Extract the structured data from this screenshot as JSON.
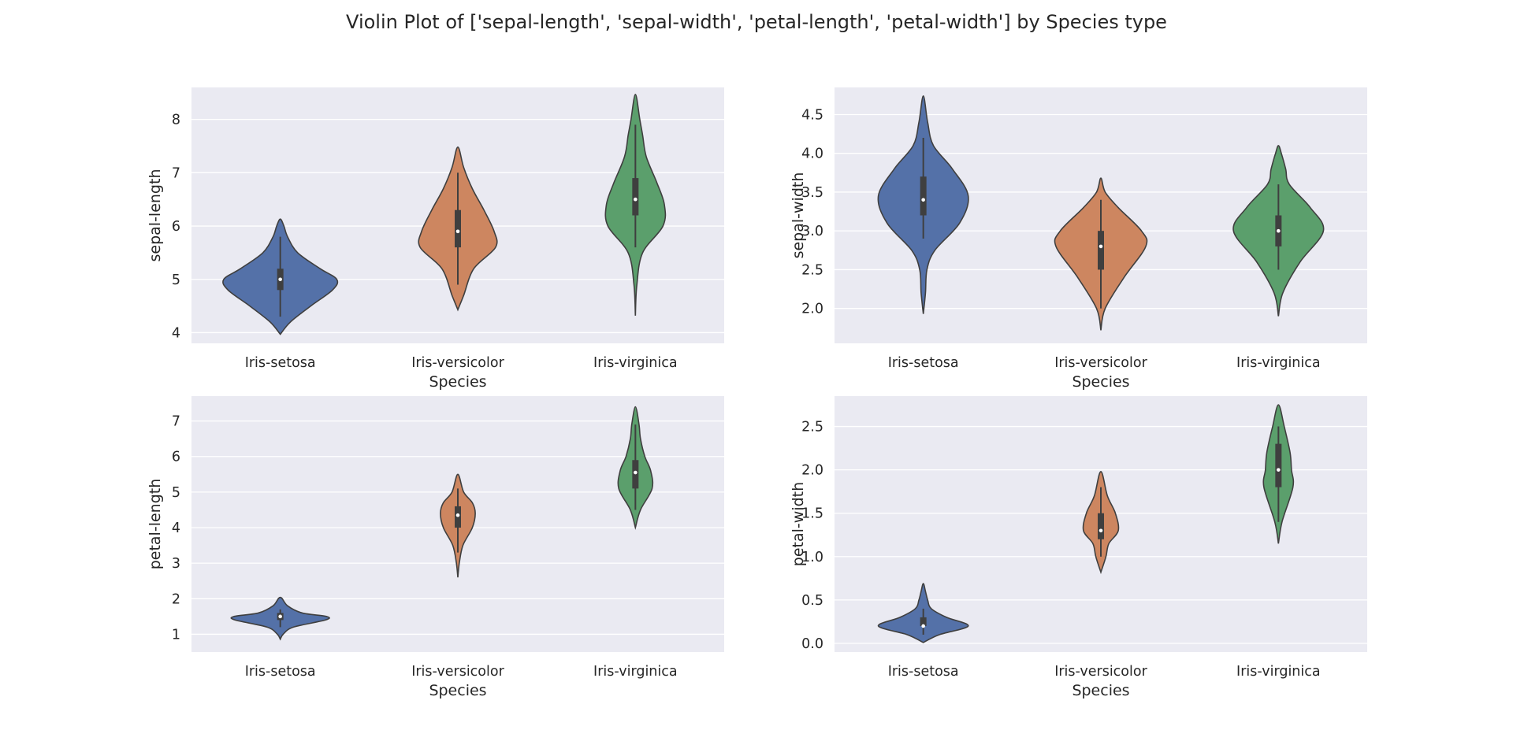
{
  "figure": {
    "title": "Violin Plot of ['sepal-length', 'sepal-width', 'petal-length', 'petal-width'] by Species type",
    "background": "#ffffff"
  },
  "style": {
    "panel_bg": "#eaeaf2",
    "grid_color": "#ffffff",
    "outline_color": "#3f3f3f",
    "box_color": "#3f3f3f",
    "median_color": "#ffffff"
  },
  "chart_data": [
    {
      "type": "violin",
      "xlabel": "Species",
      "ylabel": "sepal-length",
      "categories": [
        "Iris-setosa",
        "Iris-versicolor",
        "Iris-virginica"
      ],
      "colors": [
        "#5471a8",
        "#cd8660",
        "#5b9f6c"
      ],
      "ylim": [
        3.8,
        8.6
      ],
      "yticks": [
        4,
        5,
        6,
        7,
        8
      ],
      "grid": true,
      "violins": [
        {
          "range": [
            3.97,
            6.13
          ],
          "whisker": [
            4.3,
            5.8
          ],
          "q1": 4.8,
          "median": 5.0,
          "q3": 5.2,
          "profile": [
            [
              3.97,
              0
            ],
            [
              4.2,
              0.14
            ],
            [
              4.5,
              0.42
            ],
            [
              4.8,
              0.72
            ],
            [
              5.0,
              0.78
            ],
            [
              5.2,
              0.55
            ],
            [
              5.5,
              0.24
            ],
            [
              5.8,
              0.1
            ],
            [
              6.0,
              0.05
            ],
            [
              6.13,
              0
            ]
          ]
        },
        {
          "range": [
            4.43,
            7.48
          ],
          "whisker": [
            4.9,
            7.0
          ],
          "q1": 5.6,
          "median": 5.9,
          "q3": 6.3,
          "profile": [
            [
              4.43,
              0
            ],
            [
              4.7,
              0.08
            ],
            [
              5.2,
              0.22
            ],
            [
              5.6,
              0.52
            ],
            [
              5.9,
              0.5
            ],
            [
              6.3,
              0.36
            ],
            [
              6.7,
              0.2
            ],
            [
              7.1,
              0.08
            ],
            [
              7.48,
              0
            ]
          ]
        },
        {
          "range": [
            4.32,
            8.47
          ],
          "whisker": [
            5.6,
            7.9
          ],
          "q1": 6.2,
          "median": 6.5,
          "q3": 6.9,
          "profile": [
            [
              4.32,
              0
            ],
            [
              4.9,
              0.02
            ],
            [
              5.5,
              0.1
            ],
            [
              6.0,
              0.38
            ],
            [
              6.4,
              0.4
            ],
            [
              6.8,
              0.3
            ],
            [
              7.3,
              0.15
            ],
            [
              7.7,
              0.1
            ],
            [
              8.0,
              0.06
            ],
            [
              8.47,
              0
            ]
          ]
        }
      ]
    },
    {
      "type": "violin",
      "xlabel": "Species",
      "ylabel": "sepal-width",
      "categories": [
        "Iris-setosa",
        "Iris-versicolor",
        "Iris-virginica"
      ],
      "colors": [
        "#5471a8",
        "#cd8660",
        "#5b9f6c"
      ],
      "ylim": [
        1.55,
        4.85
      ],
      "yticks": [
        2.0,
        2.5,
        3.0,
        3.5,
        4.0,
        4.5
      ],
      "grid": true,
      "violins": [
        {
          "range": [
            1.93,
            4.74
          ],
          "whisker": [
            2.9,
            4.2
          ],
          "q1": 3.2,
          "median": 3.4,
          "q3": 3.7,
          "profile": [
            [
              1.93,
              0
            ],
            [
              2.2,
              0.03
            ],
            [
              2.5,
              0.05
            ],
            [
              2.75,
              0.16
            ],
            [
              3.1,
              0.5
            ],
            [
              3.45,
              0.62
            ],
            [
              3.8,
              0.4
            ],
            [
              4.1,
              0.14
            ],
            [
              4.4,
              0.06
            ],
            [
              4.74,
              0
            ]
          ]
        },
        {
          "range": [
            1.72,
            3.68
          ],
          "whisker": [
            2.0,
            3.4
          ],
          "q1": 2.5,
          "median": 2.8,
          "q3": 3.0,
          "profile": [
            [
              1.72,
              0
            ],
            [
              2.0,
              0.06
            ],
            [
              2.4,
              0.32
            ],
            [
              2.8,
              0.62
            ],
            [
              3.0,
              0.56
            ],
            [
              3.3,
              0.24
            ],
            [
              3.5,
              0.06
            ],
            [
              3.68,
              0
            ]
          ]
        },
        {
          "range": [
            1.9,
            4.1
          ],
          "whisker": [
            2.5,
            3.6
          ],
          "q1": 2.8,
          "median": 3.0,
          "q3": 3.2,
          "profile": [
            [
              1.9,
              0
            ],
            [
              2.2,
              0.06
            ],
            [
              2.6,
              0.3
            ],
            [
              3.0,
              0.62
            ],
            [
              3.3,
              0.44
            ],
            [
              3.6,
              0.15
            ],
            [
              3.8,
              0.1
            ],
            [
              4.0,
              0.04
            ],
            [
              4.1,
              0
            ]
          ]
        }
      ]
    },
    {
      "type": "violin",
      "xlabel": "Species",
      "ylabel": "petal-length",
      "categories": [
        "Iris-setosa",
        "Iris-versicolor",
        "Iris-virginica"
      ],
      "colors": [
        "#5471a8",
        "#cd8660",
        "#5b9f6c"
      ],
      "ylim": [
        0.5,
        7.7
      ],
      "yticks": [
        1,
        2,
        3,
        4,
        5,
        6,
        7
      ],
      "grid": true,
      "violins": [
        {
          "range": [
            0.86,
            2.04
          ],
          "whisker": [
            1.2,
            1.7
          ],
          "q1": 1.4,
          "median": 1.5,
          "q3": 1.6,
          "profile": [
            [
              0.86,
              0
            ],
            [
              1.0,
              0.04
            ],
            [
              1.2,
              0.18
            ],
            [
              1.4,
              0.62
            ],
            [
              1.5,
              0.64
            ],
            [
              1.6,
              0.3
            ],
            [
              1.8,
              0.1
            ],
            [
              2.04,
              0
            ]
          ]
        },
        {
          "range": [
            2.6,
            5.5
          ],
          "whisker": [
            3.3,
            5.1
          ],
          "q1": 4.0,
          "median": 4.35,
          "q3": 4.6,
          "profile": [
            [
              2.6,
              0
            ],
            [
              3.0,
              0.02
            ],
            [
              3.5,
              0.07
            ],
            [
              4.0,
              0.2
            ],
            [
              4.4,
              0.24
            ],
            [
              4.7,
              0.2
            ],
            [
              5.0,
              0.08
            ],
            [
              5.5,
              0
            ]
          ]
        },
        {
          "range": [
            4.0,
            7.4
          ],
          "whisker": [
            4.5,
            6.9
          ],
          "q1": 5.1,
          "median": 5.55,
          "q3": 5.9,
          "profile": [
            [
              4.0,
              0
            ],
            [
              4.5,
              0.07
            ],
            [
              5.1,
              0.23
            ],
            [
              5.6,
              0.21
            ],
            [
              6.0,
              0.13
            ],
            [
              6.5,
              0.07
            ],
            [
              6.9,
              0.05
            ],
            [
              7.4,
              0
            ]
          ]
        }
      ]
    },
    {
      "type": "violin",
      "xlabel": "Species",
      "ylabel": "petal-width",
      "categories": [
        "Iris-setosa",
        "Iris-versicolor",
        "Iris-virginica"
      ],
      "colors": [
        "#5471a8",
        "#cd8660",
        "#5b9f6c"
      ],
      "ylim": [
        -0.1,
        2.85
      ],
      "yticks": [
        0.0,
        0.5,
        1.0,
        1.5,
        2.0,
        2.5
      ],
      "grid": true,
      "violins": [
        {
          "range": [
            0.01,
            0.69
          ],
          "whisker": [
            0.1,
            0.4
          ],
          "q1": 0.2,
          "median": 0.2,
          "q3": 0.3,
          "profile": [
            [
              0.01,
              0
            ],
            [
              0.1,
              0.22
            ],
            [
              0.2,
              0.62
            ],
            [
              0.3,
              0.32
            ],
            [
              0.4,
              0.11
            ],
            [
              0.5,
              0.06
            ],
            [
              0.6,
              0.03
            ],
            [
              0.69,
              0
            ]
          ]
        },
        {
          "range": [
            0.82,
            1.98
          ],
          "whisker": [
            1.0,
            1.8
          ],
          "q1": 1.2,
          "median": 1.3,
          "q3": 1.5,
          "profile": [
            [
              0.82,
              0
            ],
            [
              1.0,
              0.07
            ],
            [
              1.15,
              0.11
            ],
            [
              1.3,
              0.24
            ],
            [
              1.5,
              0.2
            ],
            [
              1.7,
              0.09
            ],
            [
              1.98,
              0
            ]
          ]
        },
        {
          "range": [
            1.15,
            2.75
          ],
          "whisker": [
            1.4,
            2.5
          ],
          "q1": 1.8,
          "median": 2.0,
          "q3": 2.3,
          "profile": [
            [
              1.15,
              0
            ],
            [
              1.4,
              0.05
            ],
            [
              1.8,
              0.2
            ],
            [
              2.0,
              0.18
            ],
            [
              2.2,
              0.16
            ],
            [
              2.5,
              0.08
            ],
            [
              2.75,
              0
            ]
          ]
        }
      ]
    }
  ]
}
